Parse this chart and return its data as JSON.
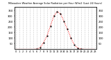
{
  "title": "Milwaukee Weather Average Solar Radiation per Hour W/m2 (Last 24 Hours)",
  "hours": [
    0,
    1,
    2,
    3,
    4,
    5,
    6,
    7,
    8,
    9,
    10,
    11,
    12,
    13,
    14,
    15,
    16,
    17,
    18,
    19,
    20,
    21,
    22,
    23
  ],
  "values": [
    0,
    0,
    0,
    0,
    0,
    0,
    2,
    15,
    60,
    120,
    210,
    300,
    340,
    320,
    250,
    180,
    100,
    40,
    10,
    2,
    0,
    0,
    0,
    0
  ],
  "line_color": "red",
  "marker_color": "black",
  "bg_color": "white",
  "grid_color": "#999999",
  "ylim": [
    0,
    380
  ],
  "yticks_left": [
    50,
    100,
    150,
    200,
    250,
    300,
    350
  ],
  "yticks_right": [
    50,
    100,
    150,
    200,
    250,
    300,
    350
  ],
  "ylabel_fontsize": 2.8,
  "xlabel_fontsize": 2.5,
  "title_fontsize": 2.5
}
